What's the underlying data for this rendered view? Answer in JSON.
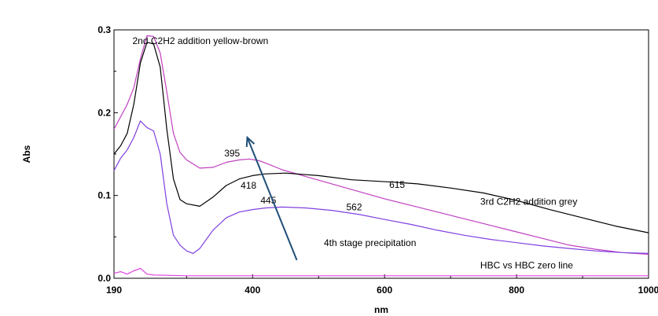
{
  "chart_data": {
    "type": "line",
    "title": "",
    "xlabel": "nm",
    "ylabel": "Abs",
    "xlim": [
      190,
      1000
    ],
    "ylim": [
      0,
      0.3
    ],
    "x_ticks": [
      {
        "value": 190,
        "label": "190"
      },
      {
        "value": 400,
        "label": "400"
      },
      {
        "value": 600,
        "label": "600"
      },
      {
        "value": 800,
        "label": "800"
      },
      {
        "value": 1000,
        "label": "1000"
      }
    ],
    "y_ticks": [
      {
        "value": 0.0,
        "label": "0.0"
      },
      {
        "value": 0.1,
        "label": "0.1"
      },
      {
        "value": 0.2,
        "label": "0.2"
      },
      {
        "value": 0.3,
        "label": "0.3"
      }
    ],
    "grid": false,
    "series": [
      {
        "name": "2nd C2H2 addition yellow-brown",
        "color": "#c040c0",
        "x": [
          190,
          200,
          210,
          220,
          230,
          240,
          250,
          260,
          270,
          280,
          290,
          300,
          320,
          340,
          360,
          380,
          395,
          410,
          420,
          445,
          480,
          520,
          560,
          600,
          640,
          680,
          720,
          760,
          800,
          840,
          880,
          920,
          960,
          1000
        ],
        "y": [
          0.18,
          0.195,
          0.21,
          0.23,
          0.265,
          0.293,
          0.292,
          0.272,
          0.225,
          0.175,
          0.152,
          0.143,
          0.133,
          0.134,
          0.14,
          0.143,
          0.144,
          0.142,
          0.139,
          0.131,
          0.123,
          0.114,
          0.105,
          0.096,
          0.088,
          0.08,
          0.072,
          0.064,
          0.056,
          0.048,
          0.04,
          0.035,
          0.031,
          0.029
        ]
      },
      {
        "name": "3rd C2H2 addition grey",
        "color": "#000000",
        "x": [
          190,
          200,
          210,
          220,
          230,
          240,
          250,
          260,
          270,
          280,
          290,
          300,
          320,
          340,
          360,
          380,
          400,
          418,
          450,
          500,
          550,
          615,
          650,
          700,
          750,
          800,
          850,
          900,
          950,
          1000
        ],
        "y": [
          0.15,
          0.16,
          0.175,
          0.21,
          0.26,
          0.285,
          0.283,
          0.255,
          0.18,
          0.12,
          0.095,
          0.09,
          0.087,
          0.098,
          0.112,
          0.12,
          0.124,
          0.126,
          0.127,
          0.124,
          0.119,
          0.116,
          0.114,
          0.109,
          0.103,
          0.094,
          0.083,
          0.073,
          0.063,
          0.055
        ]
      },
      {
        "name": "4th stage precipitation",
        "color": "#8040e0",
        "x": [
          190,
          200,
          210,
          220,
          230,
          240,
          250,
          260,
          270,
          280,
          290,
          300,
          310,
          320,
          340,
          360,
          380,
          400,
          420,
          445,
          480,
          520,
          562,
          600,
          640,
          680,
          720,
          760,
          800,
          840,
          880,
          920,
          960,
          1000
        ],
        "y": [
          0.13,
          0.145,
          0.155,
          0.17,
          0.19,
          0.182,
          0.178,
          0.15,
          0.09,
          0.052,
          0.04,
          0.033,
          0.03,
          0.036,
          0.058,
          0.073,
          0.08,
          0.083,
          0.085,
          0.086,
          0.085,
          0.082,
          0.077,
          0.071,
          0.065,
          0.058,
          0.052,
          0.047,
          0.043,
          0.039,
          0.036,
          0.033,
          0.031,
          0.03
        ]
      },
      {
        "name": "HBC vs HBC zero line",
        "color": "#e040e0",
        "x": [
          190,
          200,
          210,
          220,
          230,
          240,
          250,
          300,
          400,
          500,
          600,
          700,
          800,
          900,
          1000
        ],
        "y": [
          0.006,
          0.008,
          0.005,
          0.009,
          0.012,
          0.005,
          0.004,
          0.003,
          0.003,
          0.003,
          0.003,
          0.003,
          0.003,
          0.003,
          0.003
        ]
      }
    ],
    "annotations": [
      {
        "text": "2nd C2H2 addition yellow-brown",
        "x": 218,
        "y": 0.283
      },
      {
        "text": "395",
        "x": 357,
        "y": 0.147
      },
      {
        "text": "418",
        "x": 382,
        "y": 0.108
      },
      {
        "text": "445",
        "x": 412,
        "y": 0.09
      },
      {
        "text": "562",
        "x": 542,
        "y": 0.082
      },
      {
        "text": "615",
        "x": 607,
        "y": 0.109
      },
      {
        "text": "3rd C2H2 addition grey",
        "x": 745,
        "y": 0.089
      },
      {
        "text": "4th stage precipitation",
        "x": 508,
        "y": 0.039
      },
      {
        "text": "HBC vs HBC zero line",
        "x": 745,
        "y": 0.012
      }
    ],
    "arrow": {
      "color": "#1f4e79",
      "from": {
        "x": 467,
        "y": 0.022
      },
      "to": {
        "x": 392,
        "y": 0.17
      }
    }
  }
}
